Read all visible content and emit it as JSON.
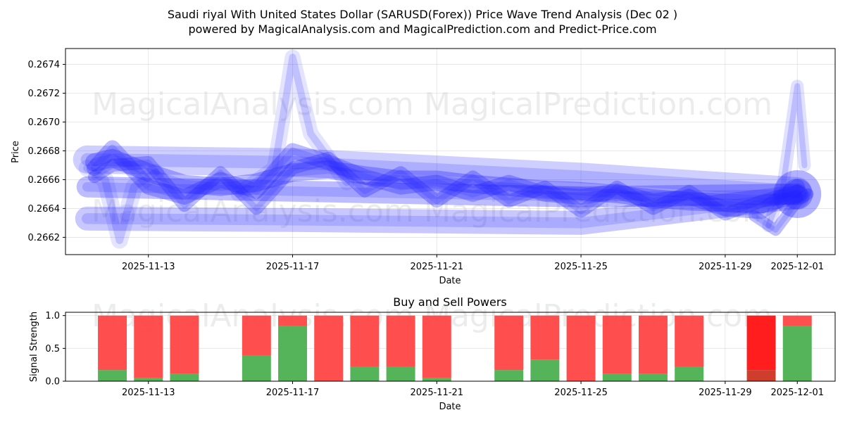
{
  "title_line1": "Saudi riyal With United States Dollar (SARUSD(Forex)) Price Wave Trend Analysis (Dec 02 )",
  "title_line2": "powered by MagicalAnalysis.com and MagicalPrediction.com and Predict-Price.com",
  "watermarks": [
    "MagicalAnalysis.com",
    "MagicalPrediction.com"
  ],
  "colors": {
    "wave": "#2222ff",
    "buy": "#4caf50",
    "sell": "#ff4444",
    "sell_strong": "#ff1111",
    "buy_strong": "#cc3322"
  },
  "chart_data": [
    {
      "type": "line",
      "xlabel": "Date",
      "ylabel": "Price",
      "x_ticks": [
        "2025-11-13",
        "2025-11-17",
        "2025-11-21",
        "2025-11-25",
        "2025-11-29",
        "2025-12-01"
      ],
      "x_tick_days": [
        2,
        6,
        10,
        14,
        18,
        20
      ],
      "x_range_days": [
        -0.3,
        21.05
      ],
      "y_ticks": [
        "0.2662",
        "0.2664",
        "0.2666",
        "0.2668",
        "0.2670",
        "0.2672",
        "0.2674"
      ],
      "ylim": [
        0.26608,
        0.26751
      ],
      "grid": true,
      "series": [
        {
          "name": "wave-fan-upper",
          "x": [
            0.3,
            6,
            14,
            20
          ],
          "values": [
            0.26674,
            0.26672,
            0.26662,
            0.26652
          ]
        },
        {
          "name": "wave-fan-lower",
          "x": [
            0.3,
            6,
            14,
            20
          ],
          "values": [
            0.26633,
            0.26632,
            0.2663,
            0.26648
          ]
        },
        {
          "name": "wave-fan-mid",
          "x": [
            0.3,
            6,
            14,
            20
          ],
          "values": [
            0.26655,
            0.26652,
            0.26648,
            0.2665
          ]
        },
        {
          "name": "wave-main",
          "x": [
            0.5,
            1,
            2,
            3,
            4,
            5,
            6,
            7,
            8,
            9,
            10,
            11,
            12,
            13,
            14,
            15,
            16,
            17,
            18,
            19,
            20
          ],
          "values": [
            0.26672,
            0.26675,
            0.26665,
            0.26657,
            0.26655,
            0.26658,
            0.26665,
            0.26667,
            0.26663,
            0.2666,
            0.2666,
            0.26657,
            0.26655,
            0.26653,
            0.26652,
            0.2665,
            0.26647,
            0.26645,
            0.26644,
            0.26643,
            0.2665
          ]
        },
        {
          "name": "wave-2",
          "x": [
            0.5,
            1,
            2,
            3,
            4,
            5,
            6,
            7,
            8,
            9,
            10,
            11,
            12,
            13,
            14,
            15,
            16,
            17,
            18,
            19,
            20
          ],
          "values": [
            0.26668,
            0.26682,
            0.26655,
            0.26648,
            0.2666,
            0.26652,
            0.2668,
            0.26672,
            0.26662,
            0.26655,
            0.26658,
            0.2665,
            0.26658,
            0.2665,
            0.26648,
            0.26652,
            0.26645,
            0.26648,
            0.2664,
            0.26638,
            0.26655
          ]
        },
        {
          "name": "wave-3",
          "x": [
            0.5,
            1,
            2,
            3,
            4,
            5,
            6,
            7,
            8,
            9,
            10,
            11,
            12,
            13,
            14,
            15,
            16,
            17,
            18,
            19,
            20
          ],
          "values": [
            0.26662,
            0.2667,
            0.26672,
            0.26642,
            0.26665,
            0.2664,
            0.26668,
            0.26675,
            0.26652,
            0.26665,
            0.26645,
            0.26662,
            0.26645,
            0.26655,
            0.26638,
            0.26655,
            0.2664,
            0.26652,
            0.26636,
            0.26645,
            0.26648
          ]
        },
        {
          "name": "wave-spike-nov17",
          "x": [
            4.5,
            5.5,
            6,
            6.5,
            7.5
          ],
          "values": [
            0.2665,
            0.26668,
            0.26745,
            0.26692,
            0.26658
          ]
        },
        {
          "name": "wave-dip-nov12",
          "x": [
            0.3,
            0.8,
            1.2,
            1.6,
            2.2
          ],
          "values": [
            0.26668,
            0.2666,
            0.26618,
            0.26655,
            0.26665
          ]
        },
        {
          "name": "wave-spike-dec01",
          "x": [
            19.2,
            19.6,
            20,
            20.2
          ],
          "values": [
            0.26628,
            0.26655,
            0.26725,
            0.2667
          ]
        },
        {
          "name": "wave-end-arrow",
          "x": [
            18.8,
            19.4,
            20,
            20.3
          ],
          "values": [
            0.26635,
            0.26625,
            0.26645,
            0.2665
          ]
        }
      ]
    },
    {
      "type": "bar",
      "title": "Buy and Sell Powers",
      "xlabel": "Date",
      "ylabel": "Signal Strength",
      "x_ticks": [
        "2025-11-13",
        "2025-11-17",
        "2025-11-21",
        "2025-11-25",
        "2025-11-29",
        "2025-12-01"
      ],
      "x_tick_days": [
        2,
        6,
        10,
        14,
        18,
        20
      ],
      "x_range_days": [
        -0.3,
        21.05
      ],
      "y_ticks": [
        "0.0",
        "0.5",
        "1.0"
      ],
      "ylim": [
        0,
        1.05
      ],
      "bar_days": [
        1,
        2,
        3,
        5,
        6,
        7,
        8,
        9,
        10,
        12,
        13,
        14,
        15,
        16,
        17,
        19,
        20
      ],
      "buy": [
        0.17,
        0.05,
        0.11,
        0.39,
        0.84,
        0.0,
        0.22,
        0.22,
        0.05,
        0.17,
        0.33,
        0.0,
        0.11,
        0.11,
        0.22,
        0.17,
        0.84
      ],
      "sell": [
        0.83,
        0.95,
        0.89,
        0.61,
        0.16,
        1.0,
        0.78,
        0.78,
        0.95,
        0.83,
        0.67,
        1.0,
        0.89,
        0.89,
        0.78,
        0.83,
        0.16
      ],
      "strong": [
        false,
        false,
        false,
        false,
        false,
        false,
        false,
        false,
        false,
        false,
        false,
        false,
        false,
        false,
        false,
        true,
        false
      ]
    }
  ]
}
